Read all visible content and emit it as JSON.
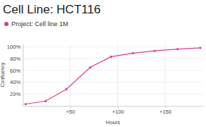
{
  "chart_data": {
    "type": "line",
    "title": "Cell Line: HCT116",
    "x_label": "Hours",
    "y_label": "Confluency",
    "x": [
      3,
      24,
      46,
      71,
      93,
      116,
      139,
      163,
      187
    ],
    "series": [
      {
        "name": "Project: Cell line 1M",
        "color": "#d43f98",
        "marker": "circle",
        "values": [
          3,
          8,
          28,
          65,
          83,
          89,
          93,
          96,
          98
        ]
      }
    ],
    "xlim": [
      0,
      190
    ],
    "ylim": [
      0,
      105
    ],
    "xticks": [
      {
        "value": 50,
        "label": "+50"
      },
      {
        "value": 100,
        "label": "+100"
      },
      {
        "value": 150,
        "label": "+150"
      }
    ],
    "yticks": [
      {
        "value": 20,
        "label": "20%"
      },
      {
        "value": 40,
        "label": "40%"
      },
      {
        "value": 60,
        "label": "60%"
      },
      {
        "value": 80,
        "label": "80%"
      },
      {
        "value": 100,
        "label": "100%"
      }
    ],
    "grid": true,
    "legend": "top-left"
  }
}
